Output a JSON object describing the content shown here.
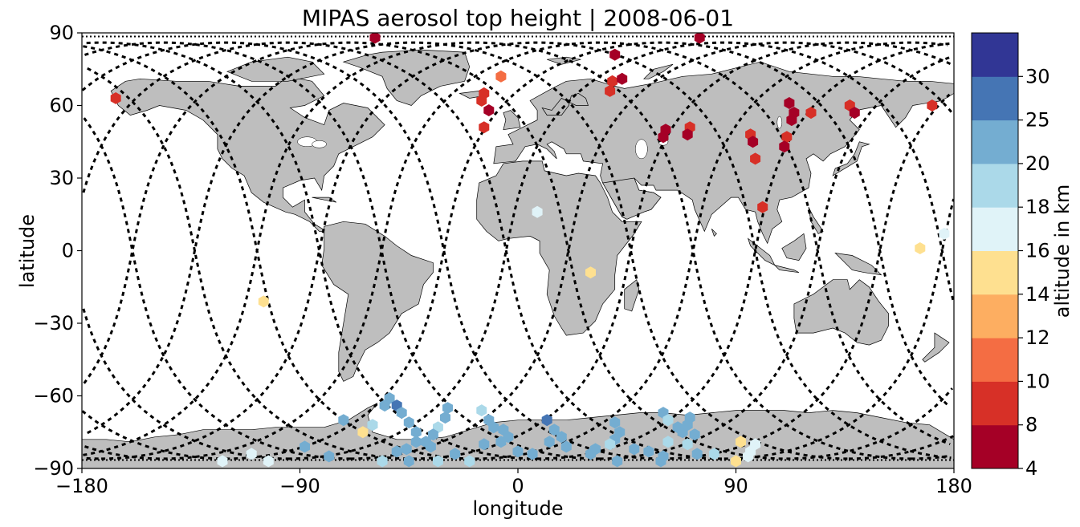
{
  "chart_data": {
    "type": "scatter",
    "title": "MIPAS aerosol top height | 2008-06-01",
    "xlabel": "longitude",
    "ylabel": "latitude",
    "xlim": [
      -180,
      180
    ],
    "ylim": [
      -90,
      90
    ],
    "xticks": [
      -180,
      -90,
      0,
      90,
      180
    ],
    "yticks": [
      -90,
      -60,
      -30,
      0,
      30,
      60,
      90
    ],
    "xtick_labels": [
      "−180",
      "−90",
      "0",
      "90",
      "180"
    ],
    "ytick_labels": [
      "−90",
      "−60",
      "−30",
      "0",
      "30",
      "60",
      "90"
    ],
    "grid": false,
    "colorbar": {
      "label": "altitude in km",
      "bounds": [
        4,
        8,
        10,
        12,
        14,
        16,
        18,
        20,
        25,
        30
      ],
      "tick_labels": [
        "4",
        "8",
        "10",
        "12",
        "14",
        "16",
        "18",
        "20",
        "25",
        "30"
      ],
      "colors": [
        "#a50026",
        "#d73027",
        "#f46d43",
        "#fdae61",
        "#fee090",
        "#e0f3f8",
        "#abd9e9",
        "#74add1",
        "#4575b4",
        "#313695"
      ]
    },
    "land_color": "#bebebe",
    "orbit_color": "#000000",
    "points": [
      {
        "lon": -166,
        "lat": 63,
        "alt": 9
      },
      {
        "lon": -59,
        "lat": 88,
        "alt": 6
      },
      {
        "lon": -14,
        "lat": 65,
        "alt": 9
      },
      {
        "lon": -15,
        "lat": 62,
        "alt": 9
      },
      {
        "lon": -12,
        "lat": 58,
        "alt": 6
      },
      {
        "lon": -14,
        "lat": 51,
        "alt": 9
      },
      {
        "lon": -7,
        "lat": 72,
        "alt": 10
      },
      {
        "lon": 40,
        "lat": 81,
        "alt": 6
      },
      {
        "lon": 39,
        "lat": 70,
        "alt": 9
      },
      {
        "lon": 38,
        "lat": 66,
        "alt": 9
      },
      {
        "lon": 43,
        "lat": 71,
        "alt": 6
      },
      {
        "lon": 75,
        "lat": 88,
        "alt": 6
      },
      {
        "lon": 61,
        "lat": 50,
        "alt": 6
      },
      {
        "lon": 60,
        "lat": 47,
        "alt": 6
      },
      {
        "lon": 71,
        "lat": 51,
        "alt": 9
      },
      {
        "lon": 70,
        "lat": 48,
        "alt": 6
      },
      {
        "lon": 96,
        "lat": 48,
        "alt": 9
      },
      {
        "lon": 97,
        "lat": 45,
        "alt": 6
      },
      {
        "lon": 98,
        "lat": 38,
        "alt": 9
      },
      {
        "lon": 101,
        "lat": 18,
        "alt": 9
      },
      {
        "lon": 112,
        "lat": 61,
        "alt": 6
      },
      {
        "lon": 114,
        "lat": 57,
        "alt": 6
      },
      {
        "lon": 113,
        "lat": 54,
        "alt": 6
      },
      {
        "lon": 111,
        "lat": 47,
        "alt": 9
      },
      {
        "lon": 110,
        "lat": 43,
        "alt": 6
      },
      {
        "lon": 121,
        "lat": 57,
        "alt": 9
      },
      {
        "lon": 137,
        "lat": 60,
        "alt": 9
      },
      {
        "lon": 139,
        "lat": 57,
        "alt": 6
      },
      {
        "lon": 171,
        "lat": 60,
        "alt": 9
      },
      {
        "lon": 8,
        "lat": 16,
        "alt": 17
      },
      {
        "lon": 30,
        "lat": -9,
        "alt": 15
      },
      {
        "lon": -105,
        "lat": -21,
        "alt": 15
      },
      {
        "lon": 166,
        "lat": 1,
        "alt": 15
      },
      {
        "lon": 176,
        "lat": 7,
        "alt": 17
      },
      {
        "lon": -53,
        "lat": -61,
        "alt": 22
      },
      {
        "lon": -55,
        "lat": -64,
        "alt": 22
      },
      {
        "lon": -50,
        "lat": -64,
        "alt": 27
      },
      {
        "lon": -48,
        "lat": -67,
        "alt": 22
      },
      {
        "lon": -45,
        "lat": -71,
        "alt": 22
      },
      {
        "lon": -60,
        "lat": -72,
        "alt": 19
      },
      {
        "lon": -72,
        "lat": -70,
        "alt": 22
      },
      {
        "lon": -42,
        "lat": -75,
        "alt": 22
      },
      {
        "lon": -33,
        "lat": -73,
        "alt": 19
      },
      {
        "lon": -30,
        "lat": -69,
        "alt": 22
      },
      {
        "lon": -29,
        "lat": -65,
        "alt": 22
      },
      {
        "lon": -35,
        "lat": -76,
        "alt": 22
      },
      {
        "lon": -42,
        "lat": -79,
        "alt": 22
      },
      {
        "lon": -38,
        "lat": -79,
        "alt": 22
      },
      {
        "lon": -36,
        "lat": -81,
        "alt": 22
      },
      {
        "lon": -46,
        "lat": -82,
        "alt": 22
      },
      {
        "lon": -15,
        "lat": -66,
        "alt": 19
      },
      {
        "lon": -12,
        "lat": -70,
        "alt": 22
      },
      {
        "lon": -10,
        "lat": -73,
        "alt": 22
      },
      {
        "lon": -6,
        "lat": -74,
        "alt": 22
      },
      {
        "lon": -4,
        "lat": -77,
        "alt": 22
      },
      {
        "lon": -7,
        "lat": -79,
        "alt": 22
      },
      {
        "lon": -14,
        "lat": -80,
        "alt": 22
      },
      {
        "lon": 12,
        "lat": -70,
        "alt": 27
      },
      {
        "lon": 15,
        "lat": -74,
        "alt": 22
      },
      {
        "lon": 18,
        "lat": -77,
        "alt": 22
      },
      {
        "lon": 13,
        "lat": -79,
        "alt": 22
      },
      {
        "lon": 20,
        "lat": -81,
        "alt": 22
      },
      {
        "lon": 0,
        "lat": -83,
        "alt": 22
      },
      {
        "lon": 6,
        "lat": -84,
        "alt": 22
      },
      {
        "lon": -26,
        "lat": -84,
        "alt": 22
      },
      {
        "lon": -50,
        "lat": -83,
        "alt": 22
      },
      {
        "lon": -88,
        "lat": -81,
        "alt": 22
      },
      {
        "lon": -78,
        "lat": -85,
        "alt": 22
      },
      {
        "lon": -64,
        "lat": -75,
        "alt": 15
      },
      {
        "lon": -56,
        "lat": -87,
        "alt": 19
      },
      {
        "lon": -33,
        "lat": -87,
        "alt": 19
      },
      {
        "lon": -45,
        "lat": -87,
        "alt": 22
      },
      {
        "lon": -20,
        "lat": -87,
        "alt": 19
      },
      {
        "lon": 40,
        "lat": -71,
        "alt": 22
      },
      {
        "lon": 42,
        "lat": -75,
        "alt": 22
      },
      {
        "lon": 40,
        "lat": -78,
        "alt": 22
      },
      {
        "lon": 38,
        "lat": -80,
        "alt": 19
      },
      {
        "lon": 32,
        "lat": -82,
        "alt": 22
      },
      {
        "lon": 30,
        "lat": -84,
        "alt": 22
      },
      {
        "lon": 48,
        "lat": -82,
        "alt": 22
      },
      {
        "lon": 54,
        "lat": -83,
        "alt": 22
      },
      {
        "lon": 60,
        "lat": -67,
        "alt": 22
      },
      {
        "lon": 62,
        "lat": -70,
        "alt": 19
      },
      {
        "lon": 66,
        "lat": -73,
        "alt": 22
      },
      {
        "lon": 68,
        "lat": -75,
        "alt": 22
      },
      {
        "lon": 70,
        "lat": -72,
        "alt": 22
      },
      {
        "lon": 71,
        "lat": -69,
        "alt": 22
      },
      {
        "lon": 73,
        "lat": -76,
        "alt": 22
      },
      {
        "lon": 62,
        "lat": -79,
        "alt": 19
      },
      {
        "lon": 70,
        "lat": -80,
        "alt": 19
      },
      {
        "lon": 74,
        "lat": -84,
        "alt": 22
      },
      {
        "lon": 81,
        "lat": -84,
        "alt": 19
      },
      {
        "lon": 60,
        "lat": -85,
        "alt": 22
      },
      {
        "lon": 59,
        "lat": -87,
        "alt": 22
      },
      {
        "lon": 41,
        "lat": -87,
        "alt": 22
      },
      {
        "lon": 92,
        "lat": -79,
        "alt": 15
      },
      {
        "lon": 96,
        "lat": -83,
        "alt": 17
      },
      {
        "lon": 95,
        "lat": -85,
        "alt": 17
      },
      {
        "lon": 98,
        "lat": -80,
        "alt": 17
      },
      {
        "lon": 90,
        "lat": -87,
        "alt": 15
      },
      {
        "lon": -122,
        "lat": -87,
        "alt": 17
      },
      {
        "lon": -103,
        "lat": -87,
        "alt": 17
      },
      {
        "lon": -110,
        "lat": -84,
        "alt": 17
      }
    ]
  }
}
